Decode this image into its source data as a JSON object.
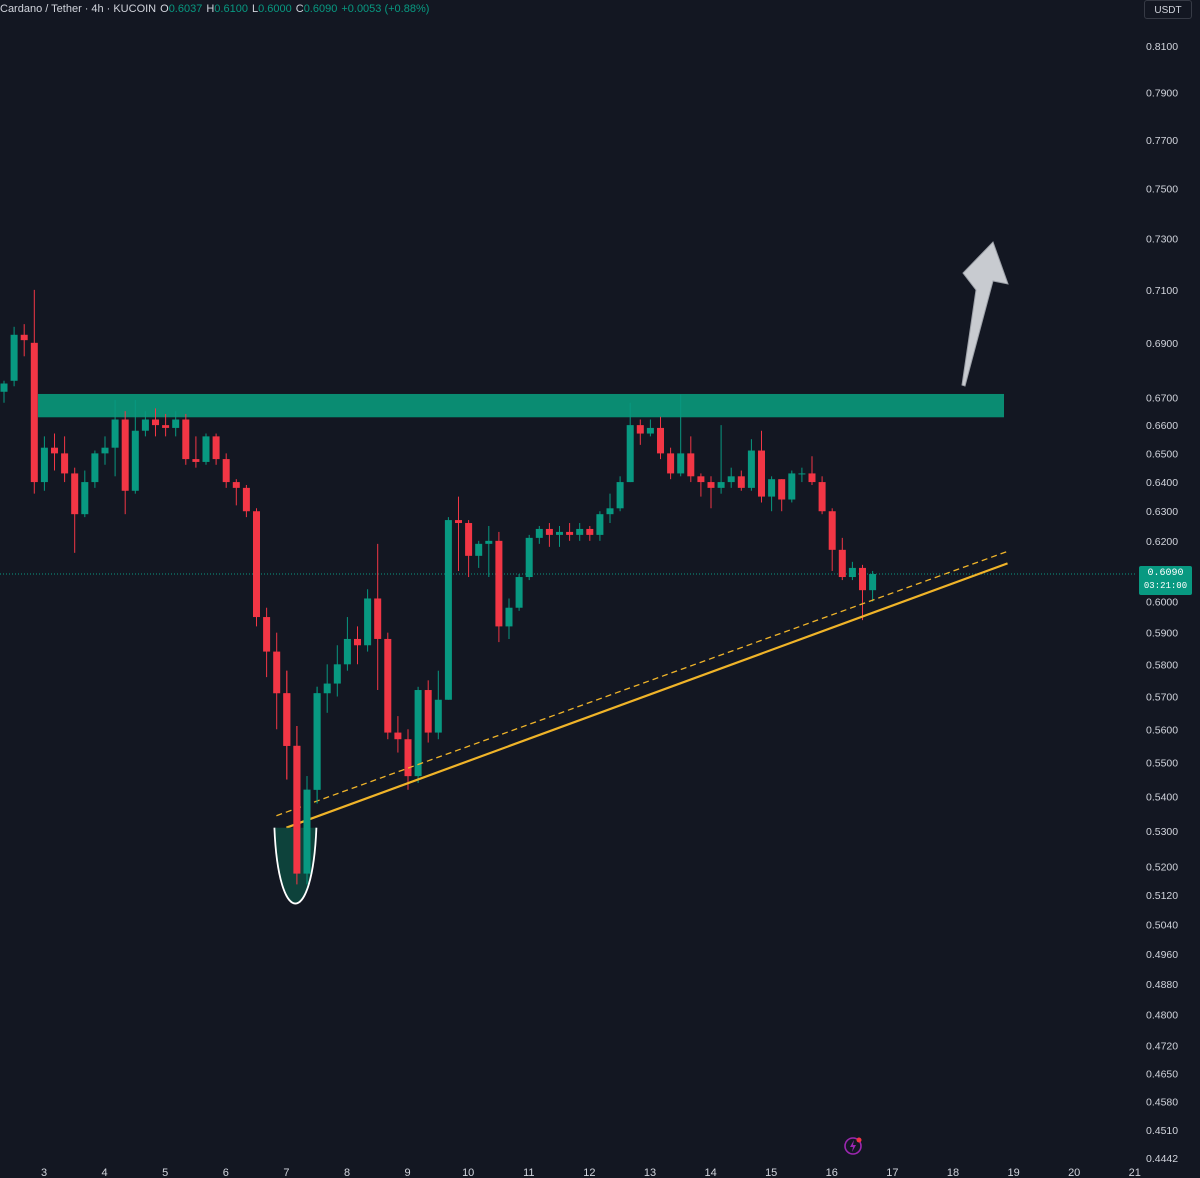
{
  "legend": {
    "symbol": "Cardano / Tether",
    "interval": "4h",
    "exchange": "KUCOIN",
    "open_label": "O",
    "open": "0.6037",
    "high_label": "H",
    "high": "0.6100",
    "low_label": "L",
    "low": "0.6000",
    "close_label": "C",
    "close": "0.6090",
    "change": "+0.0053 (+0.88%)"
  },
  "currency_button": "USDT",
  "last_price": {
    "price": "0.6090",
    "countdown": "03:21:00"
  },
  "colors": {
    "background": "#131722",
    "up": "#089981",
    "down": "#f23645",
    "zone": "#0a8c72",
    "trendline": "#f0b429",
    "arrow": "#c8cbd0",
    "text": "#d1d4dc",
    "bolt": "#9c27b0"
  },
  "icons": {
    "bolt": "lightning-bolt-icon"
  },
  "chart_data": {
    "type": "candlestick",
    "symbol": "ADAUSDT",
    "ylim": [
      0.4442,
      0.82
    ],
    "price_axis_labels": [
      "0.8100",
      "0.7900",
      "0.7700",
      "0.7500",
      "0.7300",
      "0.7100",
      "0.6900",
      "0.6700",
      "0.6600",
      "0.6500",
      "0.6400",
      "0.6300",
      "0.6200",
      "0.6000",
      "0.5900",
      "0.5800",
      "0.5700",
      "0.5600",
      "0.5500",
      "0.5400",
      "0.5300",
      "0.5200",
      "0.5120",
      "0.5040",
      "0.4960",
      "0.4880",
      "0.4800",
      "0.4720",
      "0.4650",
      "0.4580",
      "0.4510",
      "0.4442"
    ],
    "time_axis_labels": [
      "3",
      "4",
      "5",
      "6",
      "7",
      "8",
      "9",
      "10",
      "11",
      "12",
      "13",
      "14",
      "15",
      "16",
      "17",
      "18",
      "19",
      "20",
      "21"
    ],
    "resistance_zone": [
      0.6628,
      0.6712
    ],
    "trendline_from": {
      "x": "7",
      "price": 0.531
    },
    "trendline_to": {
      "x": "18.9",
      "price": 0.6125
    },
    "last_price_line": 0.609,
    "candles": [
      [
        0.672,
        0.675,
        0.668,
        0.676
      ],
      [
        0.676,
        0.693,
        0.674,
        0.696
      ],
      [
        0.693,
        0.691,
        0.685,
        0.697
      ],
      [
        0.69,
        0.64,
        0.636,
        0.71
      ],
      [
        0.64,
        0.652,
        0.637,
        0.656
      ],
      [
        0.652,
        0.65,
        0.644,
        0.657
      ],
      [
        0.65,
        0.643,
        0.64,
        0.656
      ],
      [
        0.643,
        0.629,
        0.616,
        0.645
      ],
      [
        0.629,
        0.64,
        0.628,
        0.644
      ],
      [
        0.64,
        0.65,
        0.638,
        0.651
      ],
      [
        0.65,
        0.652,
        0.646,
        0.656
      ],
      [
        0.652,
        0.662,
        0.642,
        0.669
      ],
      [
        0.662,
        0.637,
        0.629,
        0.665
      ],
      [
        0.637,
        0.658,
        0.636,
        0.669
      ],
      [
        0.658,
        0.662,
        0.656,
        0.665
      ],
      [
        0.662,
        0.66,
        0.656,
        0.666
      ],
      [
        0.66,
        0.659,
        0.656,
        0.664
      ],
      [
        0.659,
        0.662,
        0.656,
        0.665
      ],
      [
        0.662,
        0.648,
        0.646,
        0.664
      ],
      [
        0.648,
        0.647,
        0.645,
        0.656
      ],
      [
        0.647,
        0.656,
        0.646,
        0.657
      ],
      [
        0.656,
        0.648,
        0.646,
        0.657
      ],
      [
        0.648,
        0.64,
        0.638,
        0.65
      ],
      [
        0.64,
        0.638,
        0.632,
        0.641
      ],
      [
        0.638,
        0.63,
        0.628,
        0.639
      ],
      [
        0.63,
        0.595,
        0.592,
        0.631
      ],
      [
        0.595,
        0.584,
        0.576,
        0.598
      ],
      [
        0.584,
        0.571,
        0.56,
        0.59
      ],
      [
        0.571,
        0.555,
        0.545,
        0.578
      ],
      [
        0.555,
        0.518,
        0.515,
        0.561
      ],
      [
        0.518,
        0.542,
        0.515,
        0.546
      ],
      [
        0.542,
        0.571,
        0.538,
        0.573
      ],
      [
        0.571,
        0.574,
        0.565,
        0.58
      ],
      [
        0.574,
        0.58,
        0.57,
        0.586
      ],
      [
        0.58,
        0.588,
        0.578,
        0.595
      ],
      [
        0.588,
        0.586,
        0.58,
        0.592
      ],
      [
        0.586,
        0.601,
        0.584,
        0.604
      ],
      [
        0.601,
        0.588,
        0.572,
        0.619
      ],
      [
        0.588,
        0.559,
        0.557,
        0.59
      ],
      [
        0.559,
        0.557,
        0.553,
        0.564
      ],
      [
        0.557,
        0.546,
        0.542,
        0.56
      ],
      [
        0.546,
        0.572,
        0.544,
        0.573
      ],
      [
        0.572,
        0.559,
        0.556,
        0.575
      ],
      [
        0.559,
        0.569,
        0.557,
        0.578
      ],
      [
        0.569,
        0.627,
        0.569,
        0.628
      ],
      [
        0.627,
        0.626,
        0.61,
        0.635
      ],
      [
        0.626,
        0.615,
        0.608,
        0.627
      ],
      [
        0.615,
        0.619,
        0.611,
        0.62
      ],
      [
        0.619,
        0.62,
        0.608,
        0.625
      ],
      [
        0.62,
        0.592,
        0.587,
        0.623
      ],
      [
        0.592,
        0.598,
        0.588,
        0.601
      ],
      [
        0.598,
        0.608,
        0.597,
        0.609
      ],
      [
        0.608,
        0.621,
        0.607,
        0.622
      ],
      [
        0.621,
        0.624,
        0.619,
        0.625
      ],
      [
        0.624,
        0.622,
        0.618,
        0.626
      ],
      [
        0.622,
        0.623,
        0.618,
        0.625
      ],
      [
        0.623,
        0.622,
        0.62,
        0.626
      ],
      [
        0.622,
        0.624,
        0.62,
        0.626
      ],
      [
        0.624,
        0.622,
        0.62,
        0.625
      ],
      [
        0.622,
        0.629,
        0.62,
        0.63
      ],
      [
        0.629,
        0.631,
        0.626,
        0.636
      ],
      [
        0.631,
        0.64,
        0.63,
        0.642
      ],
      [
        0.64,
        0.66,
        0.64,
        0.668
      ],
      [
        0.66,
        0.657,
        0.653,
        0.662
      ],
      [
        0.657,
        0.659,
        0.656,
        0.662
      ],
      [
        0.659,
        0.65,
        0.648,
        0.663
      ],
      [
        0.65,
        0.643,
        0.641,
        0.652
      ],
      [
        0.643,
        0.65,
        0.642,
        0.671
      ],
      [
        0.65,
        0.642,
        0.64,
        0.656
      ],
      [
        0.642,
        0.64,
        0.635,
        0.643
      ],
      [
        0.64,
        0.638,
        0.631,
        0.642
      ],
      [
        0.638,
        0.64,
        0.636,
        0.66
      ],
      [
        0.64,
        0.642,
        0.638,
        0.645
      ],
      [
        0.642,
        0.638,
        0.637,
        0.644
      ],
      [
        0.638,
        0.651,
        0.637,
        0.655
      ],
      [
        0.651,
        0.635,
        0.633,
        0.658
      ],
      [
        0.635,
        0.641,
        0.63,
        0.642
      ],
      [
        0.641,
        0.634,
        0.63,
        0.641
      ],
      [
        0.634,
        0.643,
        0.633,
        0.644
      ],
      [
        0.643,
        0.643,
        0.64,
        0.645
      ],
      [
        0.643,
        0.64,
        0.639,
        0.649
      ],
      [
        0.64,
        0.63,
        0.629,
        0.642
      ],
      [
        0.63,
        0.617,
        0.61,
        0.631
      ],
      [
        0.617,
        0.608,
        0.607,
        0.621
      ],
      [
        0.608,
        0.611,
        0.607,
        0.613
      ],
      [
        0.611,
        0.6037,
        0.594,
        0.612
      ],
      [
        0.6037,
        0.609,
        0.6,
        0.61
      ]
    ]
  }
}
